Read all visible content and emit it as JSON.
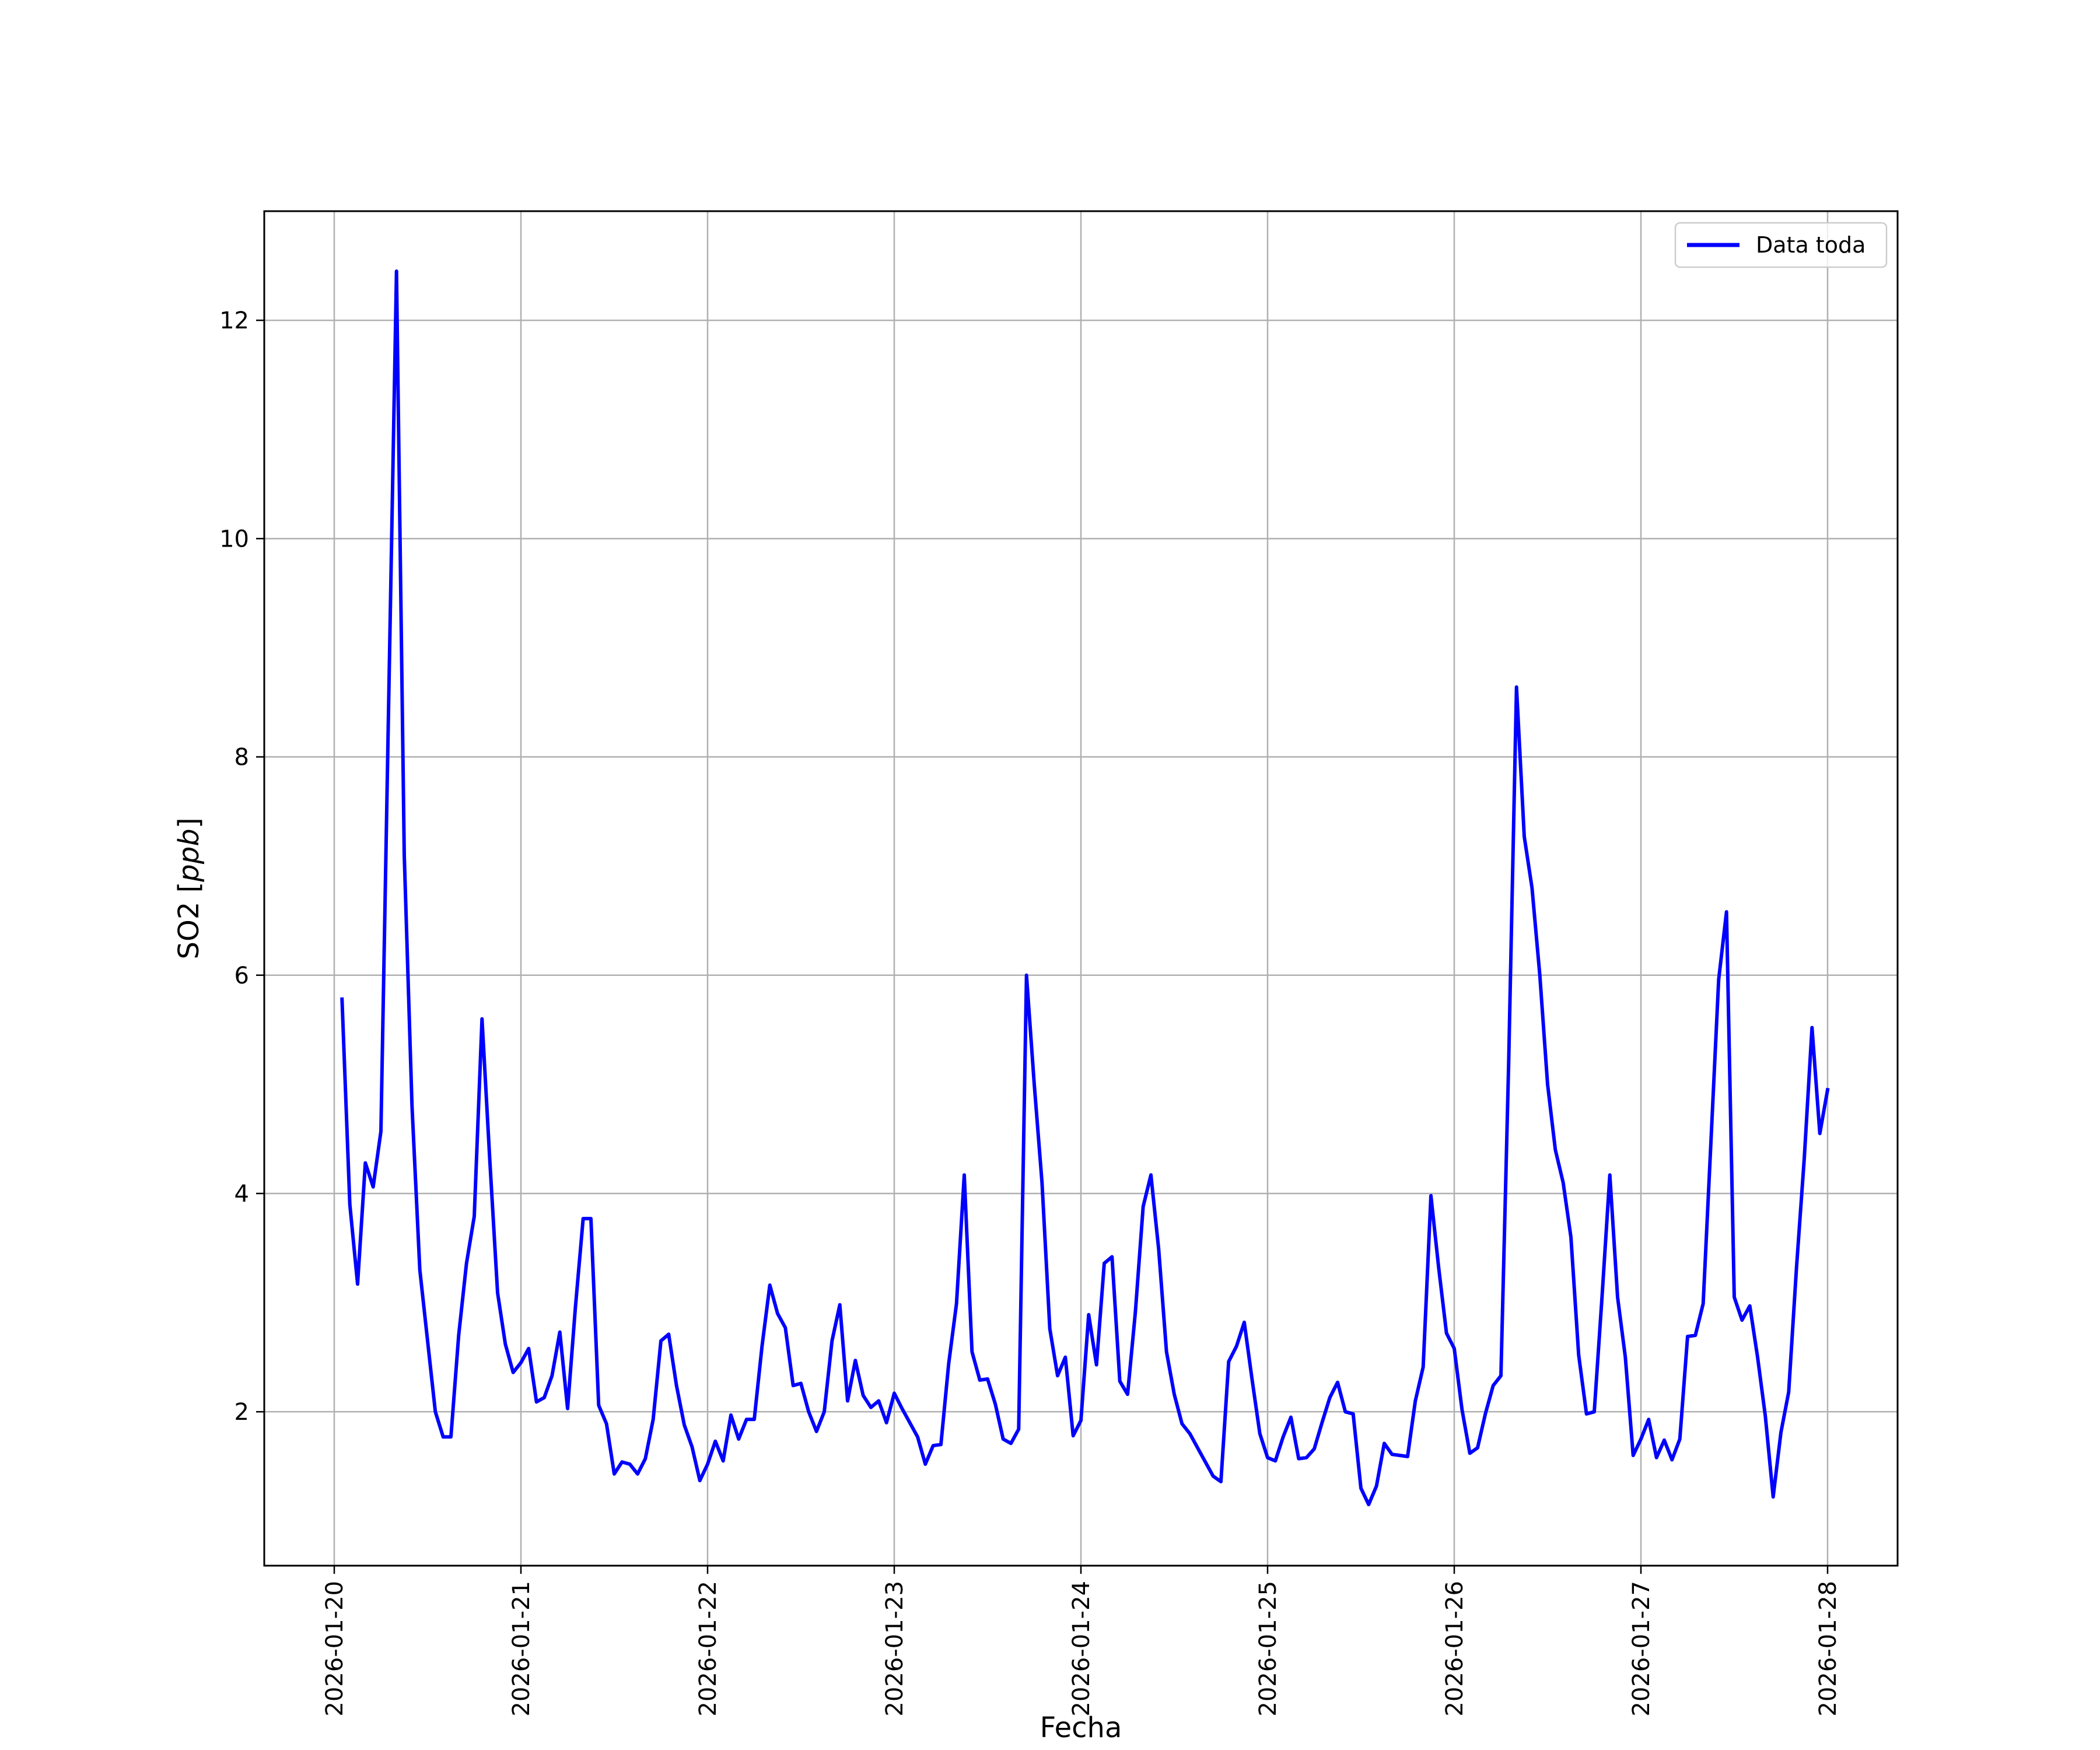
{
  "chart_data": {
    "type": "line",
    "title": "",
    "xlabel": "Fecha",
    "ylabel": "SO2 [ppb]",
    "ylabel_parts": {
      "plain": "SO2 [",
      "italic": "ppb",
      "close": "]"
    },
    "xlim": [
      "2026-01-19T15:00",
      "2026-01-28T09:00"
    ],
    "ylim": [
      0.59,
      13.0
    ],
    "x_ticks": [
      "2026-01-20",
      "2026-01-21",
      "2026-01-22",
      "2026-01-23",
      "2026-01-24",
      "2026-01-25",
      "2026-01-26",
      "2026-01-27",
      "2026-01-28"
    ],
    "y_ticks": [
      2,
      4,
      6,
      8,
      10,
      12
    ],
    "grid": true,
    "legend_position": "upper right",
    "series": [
      {
        "name": "Data toda",
        "color": "#0000ff",
        "x": [
          "2026-01-20T01:00",
          "2026-01-20T02:00",
          "2026-01-20T03:00",
          "2026-01-20T04:00",
          "2026-01-20T05:00",
          "2026-01-20T06:00",
          "2026-01-20T07:00",
          "2026-01-20T08:00",
          "2026-01-20T09:00",
          "2026-01-20T10:00",
          "2026-01-20T11:00",
          "2026-01-20T12:00",
          "2026-01-20T13:00",
          "2026-01-20T14:00",
          "2026-01-20T15:00",
          "2026-01-20T16:00",
          "2026-01-20T17:00",
          "2026-01-20T18:00",
          "2026-01-20T19:00",
          "2026-01-20T20:00",
          "2026-01-20T21:00",
          "2026-01-20T22:00",
          "2026-01-20T23:00",
          "2026-01-21T00:00",
          "2026-01-21T01:00",
          "2026-01-21T02:00",
          "2026-01-21T03:00",
          "2026-01-21T04:00",
          "2026-01-21T05:00",
          "2026-01-21T06:00",
          "2026-01-21T07:00",
          "2026-01-21T08:00",
          "2026-01-21T09:00",
          "2026-01-21T10:00",
          "2026-01-21T11:00",
          "2026-01-21T12:00",
          "2026-01-21T13:00",
          "2026-01-21T14:00",
          "2026-01-21T15:00",
          "2026-01-21T16:00",
          "2026-01-21T17:00",
          "2026-01-21T18:00",
          "2026-01-21T19:00",
          "2026-01-21T20:00",
          "2026-01-21T21:00",
          "2026-01-21T22:00",
          "2026-01-21T23:00",
          "2026-01-22T00:00",
          "2026-01-22T01:00",
          "2026-01-22T02:00",
          "2026-01-22T03:00",
          "2026-01-22T04:00",
          "2026-01-22T05:00",
          "2026-01-22T06:00",
          "2026-01-22T07:00",
          "2026-01-22T08:00",
          "2026-01-22T09:00",
          "2026-01-22T10:00",
          "2026-01-22T11:00",
          "2026-01-22T12:00",
          "2026-01-22T13:00",
          "2026-01-22T14:00",
          "2026-01-22T15:00",
          "2026-01-22T16:00",
          "2026-01-22T17:00",
          "2026-01-22T18:00",
          "2026-01-22T19:00",
          "2026-01-22T20:00",
          "2026-01-22T21:00",
          "2026-01-22T22:00",
          "2026-01-22T23:00",
          "2026-01-23T00:00",
          "2026-01-23T01:00",
          "2026-01-23T02:00",
          "2026-01-23T03:00",
          "2026-01-23T04:00",
          "2026-01-23T05:00",
          "2026-01-23T06:00",
          "2026-01-23T07:00",
          "2026-01-23T08:00",
          "2026-01-23T09:00",
          "2026-01-23T10:00",
          "2026-01-23T11:00",
          "2026-01-23T12:00",
          "2026-01-23T13:00",
          "2026-01-23T14:00",
          "2026-01-23T15:00",
          "2026-01-23T16:00",
          "2026-01-23T17:00",
          "2026-01-23T18:00",
          "2026-01-23T19:00",
          "2026-01-23T20:00",
          "2026-01-23T21:00",
          "2026-01-23T22:00",
          "2026-01-23T23:00",
          "2026-01-24T00:00",
          "2026-01-24T01:00",
          "2026-01-24T02:00",
          "2026-01-24T03:00",
          "2026-01-24T04:00",
          "2026-01-24T05:00",
          "2026-01-24T06:00",
          "2026-01-24T07:00",
          "2026-01-24T08:00",
          "2026-01-24T09:00",
          "2026-01-24T10:00",
          "2026-01-24T11:00",
          "2026-01-24T12:00",
          "2026-01-24T13:00",
          "2026-01-24T14:00",
          "2026-01-24T15:00",
          "2026-01-24T16:00",
          "2026-01-24T17:00",
          "2026-01-24T18:00",
          "2026-01-24T19:00",
          "2026-01-24T20:00",
          "2026-01-24T21:00",
          "2026-01-24T22:00",
          "2026-01-24T23:00",
          "2026-01-25T00:00",
          "2026-01-25T01:00",
          "2026-01-25T02:00",
          "2026-01-25T03:00",
          "2026-01-25T04:00",
          "2026-01-25T05:00",
          "2026-01-25T06:00",
          "2026-01-25T07:00",
          "2026-01-25T08:00",
          "2026-01-25T09:00",
          "2026-01-25T10:00",
          "2026-01-25T11:00",
          "2026-01-25T12:00",
          "2026-01-25T13:00",
          "2026-01-25T14:00",
          "2026-01-25T15:00",
          "2026-01-25T16:00",
          "2026-01-25T17:00",
          "2026-01-25T18:00",
          "2026-01-25T19:00",
          "2026-01-25T20:00",
          "2026-01-25T21:00",
          "2026-01-25T22:00",
          "2026-01-25T23:00",
          "2026-01-26T00:00",
          "2026-01-26T01:00",
          "2026-01-26T02:00",
          "2026-01-26T03:00",
          "2026-01-26T04:00",
          "2026-01-26T05:00",
          "2026-01-26T06:00",
          "2026-01-26T07:00",
          "2026-01-26T08:00",
          "2026-01-26T09:00",
          "2026-01-26T10:00",
          "2026-01-26T11:00",
          "2026-01-26T12:00",
          "2026-01-26T13:00",
          "2026-01-26T14:00",
          "2026-01-26T15:00",
          "2026-01-26T16:00",
          "2026-01-26T17:00",
          "2026-01-26T18:00",
          "2026-01-26T19:00",
          "2026-01-26T20:00",
          "2026-01-26T21:00",
          "2026-01-26T22:00",
          "2026-01-26T23:00",
          "2026-01-27T00:00",
          "2026-01-27T01:00",
          "2026-01-27T02:00",
          "2026-01-27T03:00",
          "2026-01-27T04:00",
          "2026-01-27T05:00",
          "2026-01-27T06:00",
          "2026-01-27T07:00",
          "2026-01-27T08:00",
          "2026-01-27T09:00",
          "2026-01-27T10:00",
          "2026-01-27T11:00",
          "2026-01-27T12:00",
          "2026-01-27T13:00",
          "2026-01-27T14:00",
          "2026-01-27T15:00",
          "2026-01-27T16:00",
          "2026-01-27T17:00",
          "2026-01-27T18:00",
          "2026-01-27T19:00",
          "2026-01-27T20:00",
          "2026-01-27T21:00",
          "2026-01-27T22:00",
          "2026-01-27T23:00",
          "2026-01-28T00:00"
        ],
        "y": [
          5.78,
          3.9,
          3.17,
          4.28,
          4.06,
          4.57,
          8.5,
          12.45,
          7.1,
          4.8,
          3.3,
          2.65,
          2.0,
          1.77,
          1.77,
          2.7,
          3.36,
          3.79,
          5.6,
          4.3,
          3.09,
          2.62,
          2.36,
          2.45,
          2.58,
          2.09,
          2.13,
          2.33,
          2.73,
          2.03,
          2.95,
          3.77,
          3.77,
          2.06,
          1.89,
          1.43,
          1.54,
          1.52,
          1.43,
          1.57,
          1.93,
          2.65,
          2.71,
          2.24,
          1.88,
          1.68,
          1.37,
          1.52,
          1.73,
          1.55,
          1.97,
          1.75,
          1.93,
          1.93,
          2.6,
          3.16,
          2.9,
          2.77,
          2.24,
          2.26,
          2.0,
          1.82,
          2.0,
          2.65,
          2.98,
          2.1,
          2.47,
          2.15,
          2.04,
          2.1,
          1.9,
          2.17,
          2.03,
          1.9,
          1.77,
          1.52,
          1.69,
          1.7,
          2.44,
          2.99,
          4.17,
          2.55,
          2.29,
          2.3,
          2.07,
          1.75,
          1.71,
          1.84,
          6.0,
          5.0,
          4.1,
          2.76,
          2.33,
          2.5,
          1.78,
          1.92,
          2.89,
          2.43,
          3.36,
          3.42,
          2.28,
          2.16,
          2.91,
          3.88,
          4.17,
          3.49,
          2.55,
          2.16,
          1.89,
          1.8,
          1.67,
          1.54,
          1.41,
          1.36,
          2.46,
          2.6,
          2.82,
          2.3,
          1.8,
          1.58,
          1.55,
          1.77,
          1.95,
          1.57,
          1.58,
          1.66,
          1.9,
          2.13,
          2.27,
          2.0,
          1.98,
          1.3,
          1.15,
          1.32,
          1.71,
          1.61,
          1.6,
          1.59,
          2.1,
          2.41,
          3.98,
          3.32,
          2.72,
          2.58,
          2.02,
          1.62,
          1.67,
          1.98,
          2.24,
          2.33,
          5.2,
          8.64,
          7.27,
          6.8,
          6.0,
          5.0,
          4.4,
          4.1,
          3.6,
          2.52,
          1.98,
          2.0,
          3.05,
          4.17,
          3.05,
          2.5,
          1.6,
          1.75,
          1.93,
          1.58,
          1.74,
          1.56,
          1.75,
          2.69,
          2.7,
          2.99,
          4.47,
          5.96,
          6.58,
          3.05,
          2.84,
          2.97,
          2.5,
          1.96,
          1.22,
          1.81,
          2.18,
          3.32,
          4.32,
          5.52,
          4.55,
          4.95
        ]
      }
    ]
  }
}
